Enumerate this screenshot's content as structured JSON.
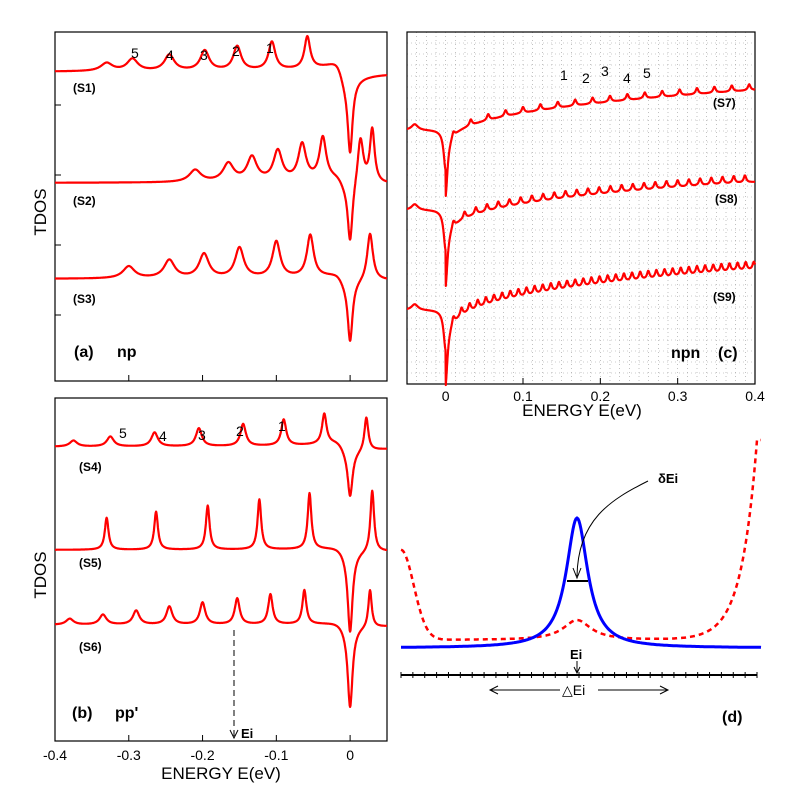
{
  "figure": {
    "description_free": true
  },
  "chart_data": [
    {
      "panel": "a",
      "type": "line",
      "label": "(a)",
      "structure": "np",
      "xlim": [
        -0.4,
        0.05
      ],
      "xticks": [],
      "ylabel": "TDOS",
      "color": "#ff0000",
      "series": [
        {
          "name": "(S1)",
          "peaks": [
            -0.33,
            -0.295,
            -0.245,
            -0.197,
            -0.153,
            -0.106,
            -0.058
          ],
          "peak_labels": [
            "5",
            "4",
            "3",
            "2",
            "1"
          ],
          "labeled_peaks": [
            -0.295,
            -0.245,
            -0.197,
            -0.153,
            -0.106
          ]
        },
        {
          "name": "(S2)",
          "peaks": [
            -0.21,
            -0.165,
            -0.133,
            -0.098,
            -0.065,
            -0.037,
            0.014,
            0.03
          ]
        },
        {
          "name": "(S3)",
          "peaks": [
            -0.3,
            -0.245,
            -0.198,
            -0.15,
            -0.1,
            -0.054,
            0.027
          ]
        }
      ]
    },
    {
      "panel": "b",
      "type": "line",
      "label": "(b)",
      "structure": "pp'",
      "xlim": [
        -0.4,
        0.05
      ],
      "xticks": [
        "-0.4",
        "-0.3",
        "-0.2",
        "-0.1",
        "0"
      ],
      "xtick_values": [
        -0.4,
        -0.3,
        -0.2,
        -0.1,
        0
      ],
      "xlabel": "ENERGY E(eV)",
      "ylabel": "TDOS",
      "color": "#ff0000",
      "annotation": {
        "text": "Ei",
        "x": -0.155
      },
      "series": [
        {
          "name": "(S4)",
          "peaks": [
            -0.375,
            -0.325,
            -0.265,
            -0.205,
            -0.145,
            -0.09,
            -0.035,
            0.022
          ],
          "peak_labels": [
            "5",
            "4",
            "3",
            "2",
            "1"
          ],
          "labeled_peaks": [
            -0.325,
            -0.265,
            -0.205,
            -0.145,
            -0.09
          ]
        },
        {
          "name": "(S5)",
          "peaks": [
            -0.33,
            -0.263,
            -0.193,
            -0.123,
            -0.055,
            0.03
          ]
        },
        {
          "name": "(S6)",
          "peaks": [
            -0.38,
            -0.335,
            -0.29,
            -0.245,
            -0.2,
            -0.153,
            -0.108,
            -0.062,
            0.027
          ]
        }
      ]
    },
    {
      "panel": "c",
      "type": "line",
      "label": "(c)",
      "structure": "npn",
      "xlim": [
        -0.05,
        0.4
      ],
      "xticks": [
        "0",
        "0.1",
        "0.2",
        "0.3",
        "0.4"
      ],
      "xtick_values": [
        0,
        0.1,
        0.2,
        0.3,
        0.4
      ],
      "xlabel": "ENERGY E(eV)",
      "grid": true,
      "color": "#ff0000",
      "series": [
        {
          "name": "(S7)",
          "spacing": 0.0225,
          "first_peak": 0.01,
          "peak_labels": [
            "1",
            "2",
            "3",
            "4",
            "5"
          ],
          "labeled_peaks": [
            0.152,
            0.178,
            0.205,
            0.232,
            0.258
          ]
        },
        {
          "name": "(S8)",
          "spacing": 0.0145,
          "first_peak": 0.01
        },
        {
          "name": "(S9)",
          "spacing": 0.0105,
          "first_peak": 0.01
        }
      ]
    },
    {
      "panel": "d",
      "type": "schematic",
      "label": "(d)",
      "labels": {
        "delta_ei": "δEi",
        "ei": "Ei",
        "range_ei": "△Ei"
      },
      "blue_curve": {
        "color": "#0000ff",
        "style": "solid"
      },
      "red_curve": {
        "color": "#ff0000",
        "style": "dashed"
      }
    }
  ],
  "text": {
    "panel_a_label": "(a)",
    "panel_a_struct": "np",
    "panel_b_label": "(b)",
    "panel_b_struct": "pp'",
    "panel_c_label": "(c)",
    "panel_c_struct": "npn",
    "panel_d_label": "(d)",
    "ylabel_top": "TDOS",
    "ylabel_bottom": "TDOS",
    "xlabel_b": "ENERGY E(eV)",
    "xlabel_c": "ENERGY E(eV)",
    "ei_annotation": "Ei",
    "s1": "(S1)",
    "s2": "(S2)",
    "s3": "(S3)",
    "s4": "(S4)",
    "s5": "(S5)",
    "s6": "(S6)",
    "s7": "(S7)",
    "s8": "(S8)",
    "s9": "(S9)",
    "delta_ei": "δEi",
    "ei_d": "Ei",
    "range_ei": "△Ei",
    "peak_numbers": [
      "1",
      "2",
      "3",
      "4",
      "5"
    ]
  }
}
